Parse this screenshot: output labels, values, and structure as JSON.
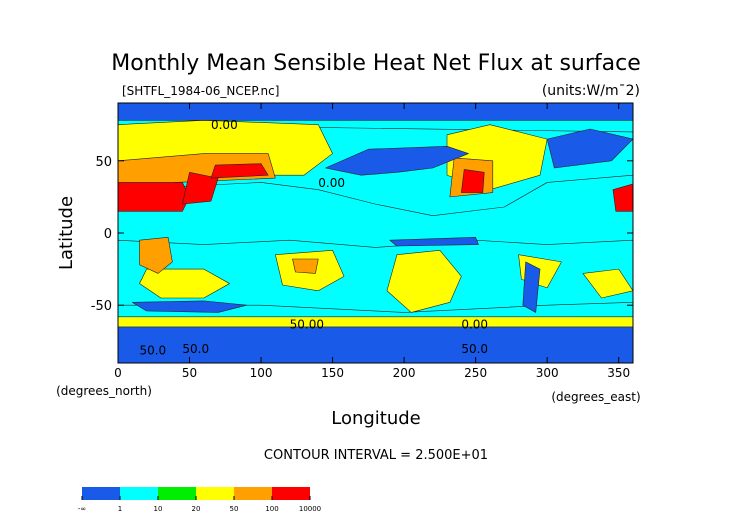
{
  "chart_data": {
    "type": "heatmap",
    "title": "Monthly Mean Sensible Heat Net Flux at surface",
    "subtitle_left": "[SHTFL_1984-06_NCEP.nc]",
    "subtitle_right": "(units:W/m¯2)",
    "xlabel": "Longitude",
    "ylabel": "Latitude",
    "x_unit_label": "(degrees_east)",
    "y_unit_label": "(degrees_north)",
    "xlim": [
      0,
      360
    ],
    "ylim": [
      -90,
      90
    ],
    "x_ticks": [
      0,
      50,
      100,
      150,
      200,
      250,
      300,
      350
    ],
    "y_ticks": [
      -50,
      0,
      50
    ],
    "footer": "CONTOUR INTERVAL = 2.500E+01",
    "colorbar": {
      "labels": [
        "-∞",
        "1",
        "10",
        "20",
        "50",
        "100",
        "10000"
      ],
      "colors": [
        "#1a5ae8",
        "#00ffff",
        "#00ee00",
        "#ffff00",
        "#ffa000",
        "#ff0000"
      ]
    },
    "contour_labels": [
      {
        "text": "50.0",
        "lon": 15,
        "lat": -84
      },
      {
        "text": "50.0",
        "lon": 45,
        "lat": -83
      },
      {
        "text": "50.0",
        "lon": 240,
        "lat": -83
      },
      {
        "text": "50.00",
        "lon": 120,
        "lat": -66
      },
      {
        "text": "0.00",
        "lon": 240,
        "lat": -66
      },
      {
        "text": "0.00",
        "lon": 140,
        "lat": 32
      },
      {
        "text": "0.00",
        "lon": 65,
        "lat": 72
      }
    ],
    "regions": [
      {
        "level": 1,
        "pts": [
          [
            0,
            -5
          ],
          [
            60,
            -8
          ],
          [
            120,
            -5
          ],
          [
            180,
            -10
          ],
          [
            250,
            -5
          ],
          [
            300,
            -8
          ],
          [
            360,
            -5
          ],
          [
            360,
            -48
          ],
          [
            300,
            -50
          ],
          [
            200,
            -55
          ],
          [
            100,
            -50
          ],
          [
            0,
            -50
          ]
        ]
      },
      {
        "level": 1,
        "pts": [
          [
            0,
            30
          ],
          [
            100,
            35
          ],
          [
            140,
            30
          ],
          [
            180,
            20
          ],
          [
            220,
            12
          ],
          [
            270,
            18
          ],
          [
            300,
            35
          ],
          [
            360,
            40
          ],
          [
            360,
            70
          ],
          [
            0,
            75
          ]
        ]
      },
      {
        "level": 3,
        "pts": [
          [
            0,
            35
          ],
          [
            60,
            40
          ],
          [
            130,
            40
          ],
          [
            150,
            55
          ],
          [
            140,
            75
          ],
          [
            60,
            78
          ],
          [
            0,
            75
          ]
        ]
      },
      {
        "level": 3,
        "pts": [
          [
            230,
            40
          ],
          [
            260,
            30
          ],
          [
            295,
            40
          ],
          [
            300,
            65
          ],
          [
            260,
            75
          ],
          [
            230,
            68
          ]
        ]
      },
      {
        "level": 3,
        "pts": [
          [
            20,
            -25
          ],
          [
            60,
            -25
          ],
          [
            78,
            -35
          ],
          [
            60,
            -45
          ],
          [
            30,
            -45
          ],
          [
            15,
            -35
          ]
        ]
      },
      {
        "level": 3,
        "pts": [
          [
            110,
            -15
          ],
          [
            150,
            -12
          ],
          [
            158,
            -30
          ],
          [
            140,
            -40
          ],
          [
            115,
            -36
          ]
        ]
      },
      {
        "level": 3,
        "pts": [
          [
            195,
            -15
          ],
          [
            225,
            -12
          ],
          [
            240,
            -30
          ],
          [
            232,
            -48
          ],
          [
            205,
            -55
          ],
          [
            188,
            -40
          ]
        ]
      },
      {
        "level": 3,
        "pts": [
          [
            280,
            -15
          ],
          [
            310,
            -20
          ],
          [
            300,
            -38
          ],
          [
            282,
            -32
          ]
        ]
      },
      {
        "level": 3,
        "pts": [
          [
            325,
            -28
          ],
          [
            350,
            -25
          ],
          [
            360,
            -40
          ],
          [
            338,
            -45
          ]
        ]
      },
      {
        "level": 3,
        "pts": [
          [
            0,
            -58
          ],
          [
            360,
            -58
          ],
          [
            360,
            -66
          ],
          [
            0,
            -66
          ]
        ]
      },
      {
        "level": 4,
        "pts": [
          [
            0,
            30
          ],
          [
            40,
            35
          ],
          [
            110,
            38
          ],
          [
            105,
            55
          ],
          [
            60,
            55
          ],
          [
            0,
            50
          ]
        ]
      },
      {
        "level": 4,
        "pts": [
          [
            15,
            -5
          ],
          [
            35,
            -3
          ],
          [
            38,
            -20
          ],
          [
            28,
            -28
          ],
          [
            15,
            -22
          ]
        ]
      },
      {
        "level": 4,
        "pts": [
          [
            122,
            -18
          ],
          [
            140,
            -18
          ],
          [
            138,
            -28
          ],
          [
            124,
            -27
          ]
        ]
      },
      {
        "level": 4,
        "pts": [
          [
            232,
            25
          ],
          [
            262,
            28
          ],
          [
            262,
            50
          ],
          [
            235,
            52
          ]
        ]
      },
      {
        "level": 5,
        "pts": [
          [
            0,
            15
          ],
          [
            45,
            15
          ],
          [
            50,
            25
          ],
          [
            45,
            35
          ],
          [
            0,
            35
          ]
        ]
      },
      {
        "level": 5,
        "pts": [
          [
            45,
            20
          ],
          [
            65,
            22
          ],
          [
            70,
            38
          ],
          [
            50,
            42
          ]
        ]
      },
      {
        "level": 5,
        "pts": [
          [
            65,
            38
          ],
          [
            105,
            40
          ],
          [
            100,
            48
          ],
          [
            68,
            47
          ]
        ]
      },
      {
        "level": 5,
        "pts": [
          [
            240,
            28
          ],
          [
            255,
            28
          ],
          [
            256,
            42
          ],
          [
            242,
            44
          ]
        ]
      },
      {
        "level": 5,
        "pts": [
          [
            348,
            15
          ],
          [
            360,
            15
          ],
          [
            360,
            34
          ],
          [
            346,
            30
          ]
        ]
      },
      {
        "level": 0,
        "pts": [
          [
            0,
            78
          ],
          [
            360,
            78
          ],
          [
            360,
            90
          ],
          [
            0,
            90
          ]
        ]
      },
      {
        "level": 0,
        "pts": [
          [
            145,
            45
          ],
          [
            175,
            58
          ],
          [
            230,
            60
          ],
          [
            245,
            55
          ],
          [
            220,
            45
          ],
          [
            195,
            42
          ],
          [
            170,
            40
          ]
        ]
      },
      {
        "level": 0,
        "pts": [
          [
            305,
            45
          ],
          [
            345,
            50
          ],
          [
            360,
            65
          ],
          [
            330,
            72
          ],
          [
            300,
            65
          ]
        ]
      },
      {
        "level": 0,
        "pts": [
          [
            10,
            -48
          ],
          [
            60,
            -47
          ],
          [
            90,
            -50
          ],
          [
            70,
            -55
          ],
          [
            20,
            -54
          ]
        ]
      },
      {
        "level": 0,
        "pts": [
          [
            285,
            -20
          ],
          [
            295,
            -25
          ],
          [
            292,
            -55
          ],
          [
            283,
            -50
          ]
        ]
      },
      {
        "level": 0,
        "pts": [
          [
            190,
            -5
          ],
          [
            250,
            -3
          ],
          [
            252,
            -8
          ],
          [
            195,
            -9
          ]
        ]
      },
      {
        "level": 0,
        "pts": [
          [
            0,
            -65
          ],
          [
            360,
            -65
          ],
          [
            360,
            -90
          ],
          [
            0,
            -90
          ]
        ]
      }
    ]
  }
}
